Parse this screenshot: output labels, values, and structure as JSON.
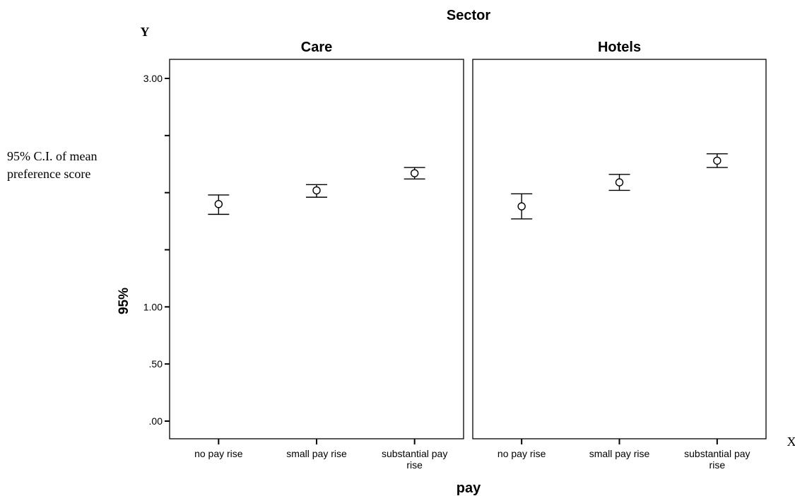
{
  "chart_data": {
    "type": "scatter",
    "variant": "error-bar",
    "title": "Sector",
    "xlabel": "pay",
    "ylabel": "95%",
    "y_corner_label": "Y",
    "x_corner_label": "X",
    "side_label_lines": [
      "95% C.I. of mean",
      "preference score"
    ],
    "categories": [
      "no pay rise",
      "small pay rise",
      "substantial pay rise"
    ],
    "ylim": [
      -0.1,
      3.1
    ],
    "yticks": [
      {
        "value": 0.0,
        "label": ".00"
      },
      {
        "value": 0.5,
        "label": ".50"
      },
      {
        "value": 1.0,
        "label": "1.00"
      },
      {
        "value": 1.5,
        "label": ""
      },
      {
        "value": 2.0,
        "label": ""
      },
      {
        "value": 2.5,
        "label": ""
      },
      {
        "value": 3.0,
        "label": "3.00"
      }
    ],
    "panels": [
      {
        "name": "Care",
        "mean": [
          1.9,
          2.02,
          2.17
        ],
        "lower": [
          1.81,
          1.96,
          2.12
        ],
        "upper": [
          1.98,
          2.07,
          2.22
        ]
      },
      {
        "name": "Hotels",
        "mean": [
          1.88,
          2.09,
          2.28
        ],
        "lower": [
          1.77,
          2.02,
          2.22
        ],
        "upper": [
          1.99,
          2.16,
          2.34
        ]
      }
    ],
    "grid": false,
    "legend": "none"
  }
}
